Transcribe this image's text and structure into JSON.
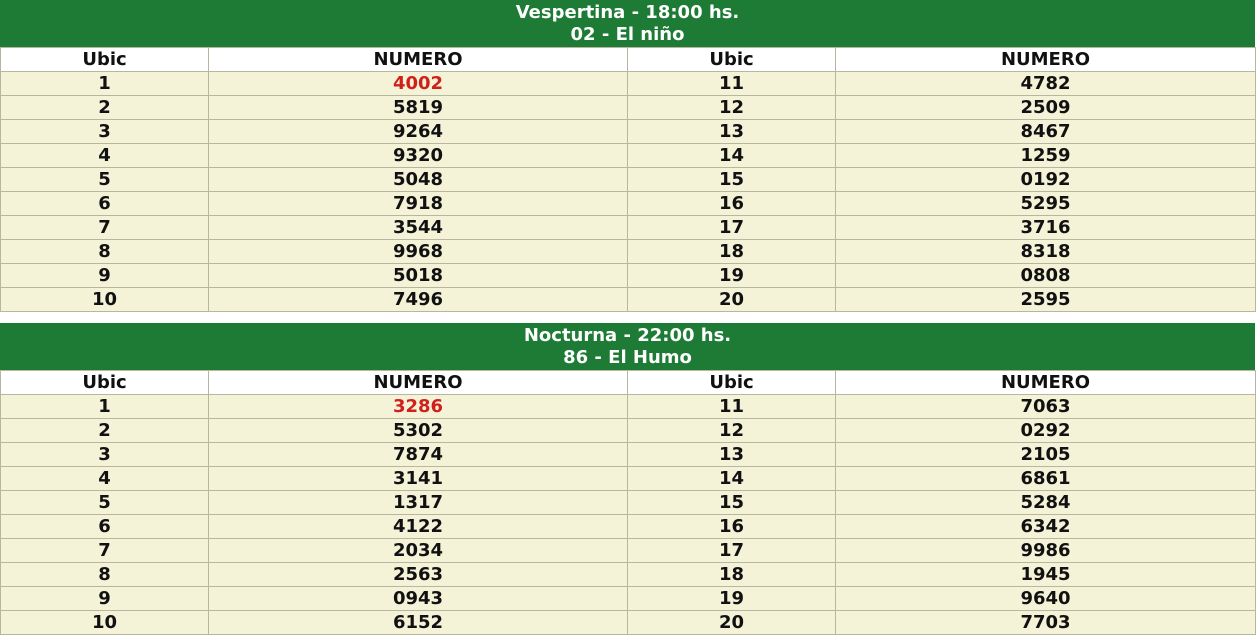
{
  "colors": {
    "header_bg": "#1e7b35",
    "row_bg": "#f4f2d7",
    "highlight": "#d0201c"
  },
  "columns": {
    "ubic": "Ubic",
    "numero": "NUMERO"
  },
  "draws": [
    {
      "title": "Vespertina - 18:00 hs.",
      "subtitle": "02 - El niño",
      "rows": [
        {
          "ubic_left": "1",
          "num_left": "4002",
          "ubic_right": "11",
          "num_right": "4782"
        },
        {
          "ubic_left": "2",
          "num_left": "5819",
          "ubic_right": "12",
          "num_right": "2509"
        },
        {
          "ubic_left": "3",
          "num_left": "9264",
          "ubic_right": "13",
          "num_right": "8467"
        },
        {
          "ubic_left": "4",
          "num_left": "9320",
          "ubic_right": "14",
          "num_right": "1259"
        },
        {
          "ubic_left": "5",
          "num_left": "5048",
          "ubic_right": "15",
          "num_right": "0192"
        },
        {
          "ubic_left": "6",
          "num_left": "7918",
          "ubic_right": "16",
          "num_right": "5295"
        },
        {
          "ubic_left": "7",
          "num_left": "3544",
          "ubic_right": "17",
          "num_right": "3716"
        },
        {
          "ubic_left": "8",
          "num_left": "9968",
          "ubic_right": "18",
          "num_right": "8318"
        },
        {
          "ubic_left": "9",
          "num_left": "5018",
          "ubic_right": "19",
          "num_right": "0808"
        },
        {
          "ubic_left": "10",
          "num_left": "7496",
          "ubic_right": "20",
          "num_right": "2595"
        }
      ]
    },
    {
      "title": "Nocturna - 22:00 hs.",
      "subtitle": "86 - El Humo",
      "rows": [
        {
          "ubic_left": "1",
          "num_left": "3286",
          "ubic_right": "11",
          "num_right": "7063"
        },
        {
          "ubic_left": "2",
          "num_left": "5302",
          "ubic_right": "12",
          "num_right": "0292"
        },
        {
          "ubic_left": "3",
          "num_left": "7874",
          "ubic_right": "13",
          "num_right": "2105"
        },
        {
          "ubic_left": "4",
          "num_left": "3141",
          "ubic_right": "14",
          "num_right": "6861"
        },
        {
          "ubic_left": "5",
          "num_left": "1317",
          "ubic_right": "15",
          "num_right": "5284"
        },
        {
          "ubic_left": "6",
          "num_left": "4122",
          "ubic_right": "16",
          "num_right": "6342"
        },
        {
          "ubic_left": "7",
          "num_left": "2034",
          "ubic_right": "17",
          "num_right": "9986"
        },
        {
          "ubic_left": "8",
          "num_left": "2563",
          "ubic_right": "18",
          "num_right": "1945"
        },
        {
          "ubic_left": "9",
          "num_left": "0943",
          "ubic_right": "19",
          "num_right": "9640"
        },
        {
          "ubic_left": "10",
          "num_left": "6152",
          "ubic_right": "20",
          "num_right": "7703"
        }
      ]
    }
  ]
}
